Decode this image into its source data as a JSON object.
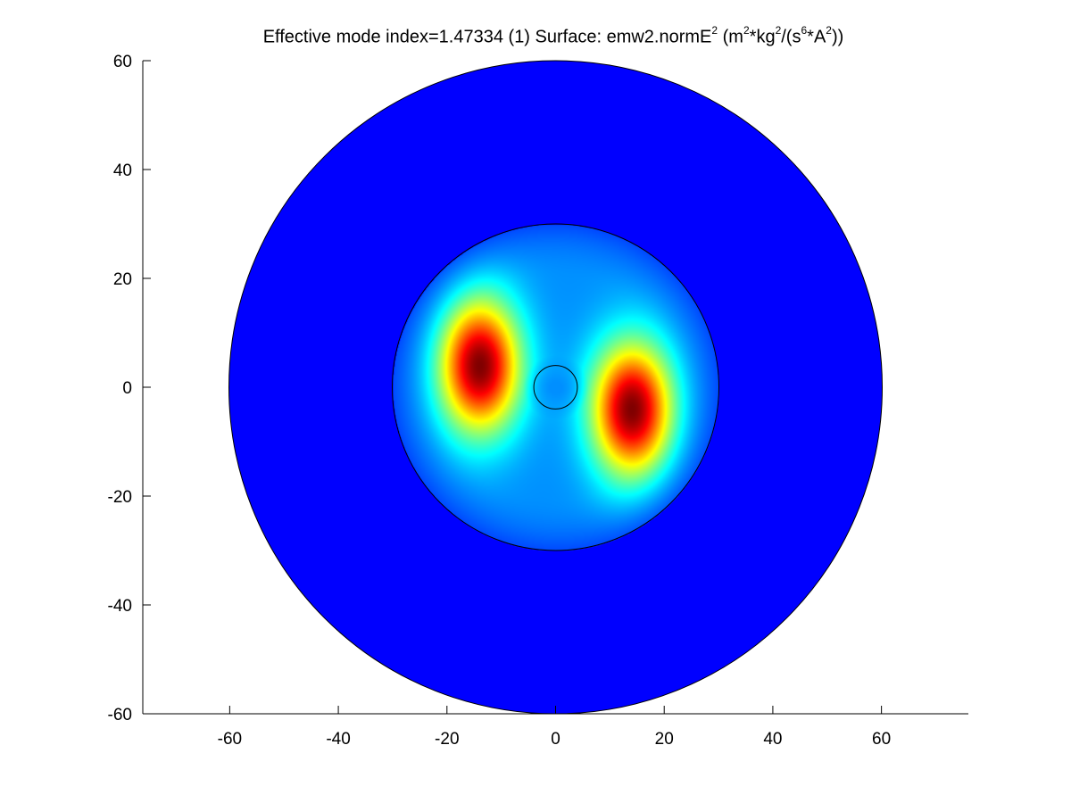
{
  "chart_data": {
    "type": "heatmap",
    "title": {
      "part1": "Effective mode index=1.47334 (1) Surface: emw2.normE",
      "sup1": "2",
      "part2": " (m",
      "sup2": "2",
      "part3": "*kg",
      "sup3": "2",
      "part4": "/(s",
      "sup4": "6",
      "part5": "*A",
      "sup5": "2",
      "part6": "))"
    },
    "xlim": [
      -76,
      76
    ],
    "ylim": [
      -60,
      60
    ],
    "x_ticks": [
      -60,
      -40,
      -20,
      0,
      20,
      40,
      60
    ],
    "y_ticks": [
      -60,
      -40,
      -20,
      0,
      20,
      40,
      60
    ],
    "xlabel": "",
    "ylabel": "",
    "grid": false,
    "colormap": "jet",
    "domain_circles": [
      {
        "cx": 0,
        "cy": 0,
        "r": 60
      },
      {
        "cx": 0,
        "cy": 0,
        "r": 30
      },
      {
        "cx": 0,
        "cy": 0,
        "r": 4
      }
    ],
    "field_lobes": [
      {
        "cx": -14,
        "cy": 4,
        "sx": 5.2,
        "sy": 8.5,
        "peak": 1.0
      },
      {
        "cx": 14,
        "cy": -4,
        "sx": 5.2,
        "sy": 8.5,
        "peak": 1.0
      }
    ],
    "core_cutout": {
      "cx": 0,
      "cy": 0,
      "r": 4
    }
  }
}
